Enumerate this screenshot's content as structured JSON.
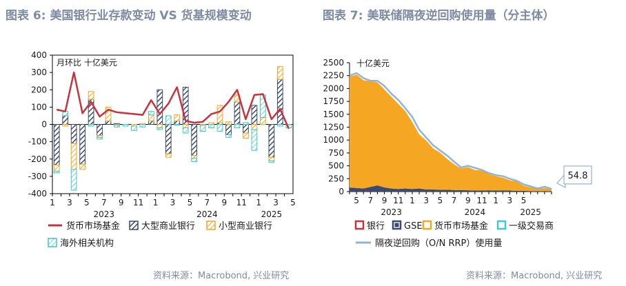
{
  "left": {
    "title": "图表 6:  美国银行业存款变动 VS 货基规模变动",
    "source": "资料来源：Macrobond, 兴业研究"
  },
  "right": {
    "title": "图表 7:  美联储隔夜逆回购使用量（分主体）",
    "source": "资料来源：Macrobond, 兴业研究"
  },
  "chart_data": [
    {
      "type": "bar",
      "unit_label": "月环比  十亿美元",
      "ylim": [
        -400,
        400
      ],
      "yticks": [
        -400,
        -300,
        -200,
        -100,
        0,
        100,
        200,
        300,
        400
      ],
      "month_tick_labels": [
        "1",
        "3",
        "5",
        "7",
        "9",
        "11",
        "1",
        "3",
        "5",
        "7",
        "9",
        "11",
        "1",
        "3",
        "5"
      ],
      "year_labels": [
        "2023",
        "2024",
        "2025"
      ],
      "months": [
        "2023-01",
        "2023-02",
        "2023-03",
        "2023-04",
        "2023-05",
        "2023-06",
        "2023-07",
        "2023-08",
        "2023-09",
        "2023-10",
        "2023-11",
        "2023-12",
        "2024-01",
        "2024-02",
        "2024-03",
        "2024-04",
        "2024-05",
        "2024-06",
        "2024-07",
        "2024-08",
        "2024-09",
        "2024-10",
        "2024-11",
        "2024-12",
        "2025-01",
        "2025-02",
        "2025-03",
        "2025-04"
      ],
      "series": [
        {
          "name": "货币市场基金",
          "kind": "line",
          "color": "#c8323c",
          "values": [
            85,
            75,
            300,
            65,
            130,
            45,
            85,
            70,
            65,
            60,
            55,
            140,
            60,
            120,
            215,
            20,
            10,
            15,
            60,
            75,
            130,
            200,
            30,
            170,
            175,
            30,
            90,
            -25
          ]
        },
        {
          "name": "大型商业银行",
          "kind": "bar",
          "color": "#3c4a6e",
          "pattern": "hatch-navy",
          "values": [
            -235,
            50,
            -110,
            -230,
            145,
            -65,
            20,
            5,
            0,
            0,
            0,
            20,
            200,
            -170,
            20,
            215,
            -180,
            0,
            0,
            10,
            -60,
            130,
            -50,
            110,
            0,
            -190,
            260,
            0
          ]
        },
        {
          "name": "小型商业银行",
          "kind": "bar",
          "color": "#f5a623",
          "pattern": "hatch-orange",
          "values": [
            -35,
            -10,
            -150,
            -30,
            45,
            -10,
            80,
            -5,
            0,
            -10,
            5,
            35,
            -20,
            -20,
            35,
            -20,
            -15,
            -5,
            10,
            100,
            15,
            40,
            -30,
            -30,
            40,
            -20,
            75,
            0
          ]
        },
        {
          "name": "海外相关机构",
          "kind": "bar",
          "color": "#3ec8c8",
          "pattern": "hatch-teal",
          "values": [
            -10,
            25,
            -120,
            0,
            -10,
            -10,
            0,
            -10,
            -10,
            -25,
            -15,
            20,
            -10,
            50,
            -5,
            -30,
            -20,
            -35,
            -20,
            -40,
            -15,
            -20,
            10,
            -120,
            130,
            -10,
            -10,
            -20
          ]
        }
      ]
    },
    {
      "type": "area",
      "unit_label": "十亿美元",
      "ylim": [
        0,
        2500
      ],
      "yticks": [
        0,
        250,
        500,
        750,
        1000,
        1250,
        1500,
        1750,
        2000,
        2250,
        2500
      ],
      "month_tick_labels": [
        "5",
        "7",
        "9",
        "11",
        "1",
        "3",
        "5",
        "7",
        "9",
        "11",
        "1",
        "3",
        "5"
      ],
      "year_labels": [
        "2023",
        "2024",
        "2025"
      ],
      "months": [
        "2022-12",
        "2023-01",
        "2023-02",
        "2023-03",
        "2023-04",
        "2023-05",
        "2023-06",
        "2023-07",
        "2023-08",
        "2023-09",
        "2023-10",
        "2023-11",
        "2023-12",
        "2024-01",
        "2024-02",
        "2024-03",
        "2024-04",
        "2024-05",
        "2024-06",
        "2024-07",
        "2024-08",
        "2024-09",
        "2024-10",
        "2024-11",
        "2024-12",
        "2025-01",
        "2025-02",
        "2025-03",
        "2025-04",
        "2025-05"
      ],
      "series": [
        {
          "name": "银行",
          "kind": "area",
          "color": "#c8323c",
          "values": [
            0,
            0,
            0,
            0,
            0,
            0,
            0,
            0,
            0,
            0,
            0,
            0,
            0,
            0,
            0,
            0,
            0,
            0,
            0,
            0,
            0,
            0,
            0,
            0,
            0,
            0,
            0,
            0,
            0,
            0
          ]
        },
        {
          "name": "GSE",
          "kind": "area",
          "color": "#3c4a6e",
          "values": [
            80,
            70,
            60,
            90,
            120,
            80,
            60,
            50,
            60,
            50,
            60,
            40,
            40,
            35,
            35,
            30,
            30,
            25,
            20,
            20,
            25,
            20,
            20,
            20,
            15,
            15,
            10,
            10,
            10,
            10
          ]
        },
        {
          "name": "货币市场基金",
          "kind": "area",
          "color": "#f5a623",
          "values": [
            2150,
            2200,
            2100,
            2050,
            2000,
            1900,
            1780,
            1650,
            1500,
            1300,
            1050,
            950,
            800,
            720,
            600,
            500,
            420,
            450,
            400,
            390,
            320,
            280,
            250,
            200,
            180,
            100,
            70,
            40,
            60,
            40
          ]
        },
        {
          "name": "一级交易商",
          "kind": "area",
          "color": "#3ec8c8",
          "values": [
            0,
            0,
            0,
            0,
            0,
            0,
            0,
            0,
            0,
            0,
            0,
            0,
            0,
            0,
            0,
            0,
            0,
            0,
            0,
            0,
            0,
            0,
            0,
            0,
            0,
            0,
            0,
            0,
            0,
            0
          ]
        },
        {
          "name": "隔夜逆回购（O/N RRP）使用量",
          "kind": "line",
          "color": "#8fb4d8",
          "values": [
            2250,
            2300,
            2200,
            2150,
            2150,
            2050,
            1900,
            1780,
            1620,
            1450,
            1200,
            1050,
            900,
            800,
            700,
            580,
            470,
            500,
            460,
            420,
            360,
            320,
            300,
            250,
            210,
            140,
            100,
            60,
            95,
            54.8
          ]
        }
      ],
      "annotation": {
        "text": "54.8",
        "value": 54.8
      }
    }
  ]
}
